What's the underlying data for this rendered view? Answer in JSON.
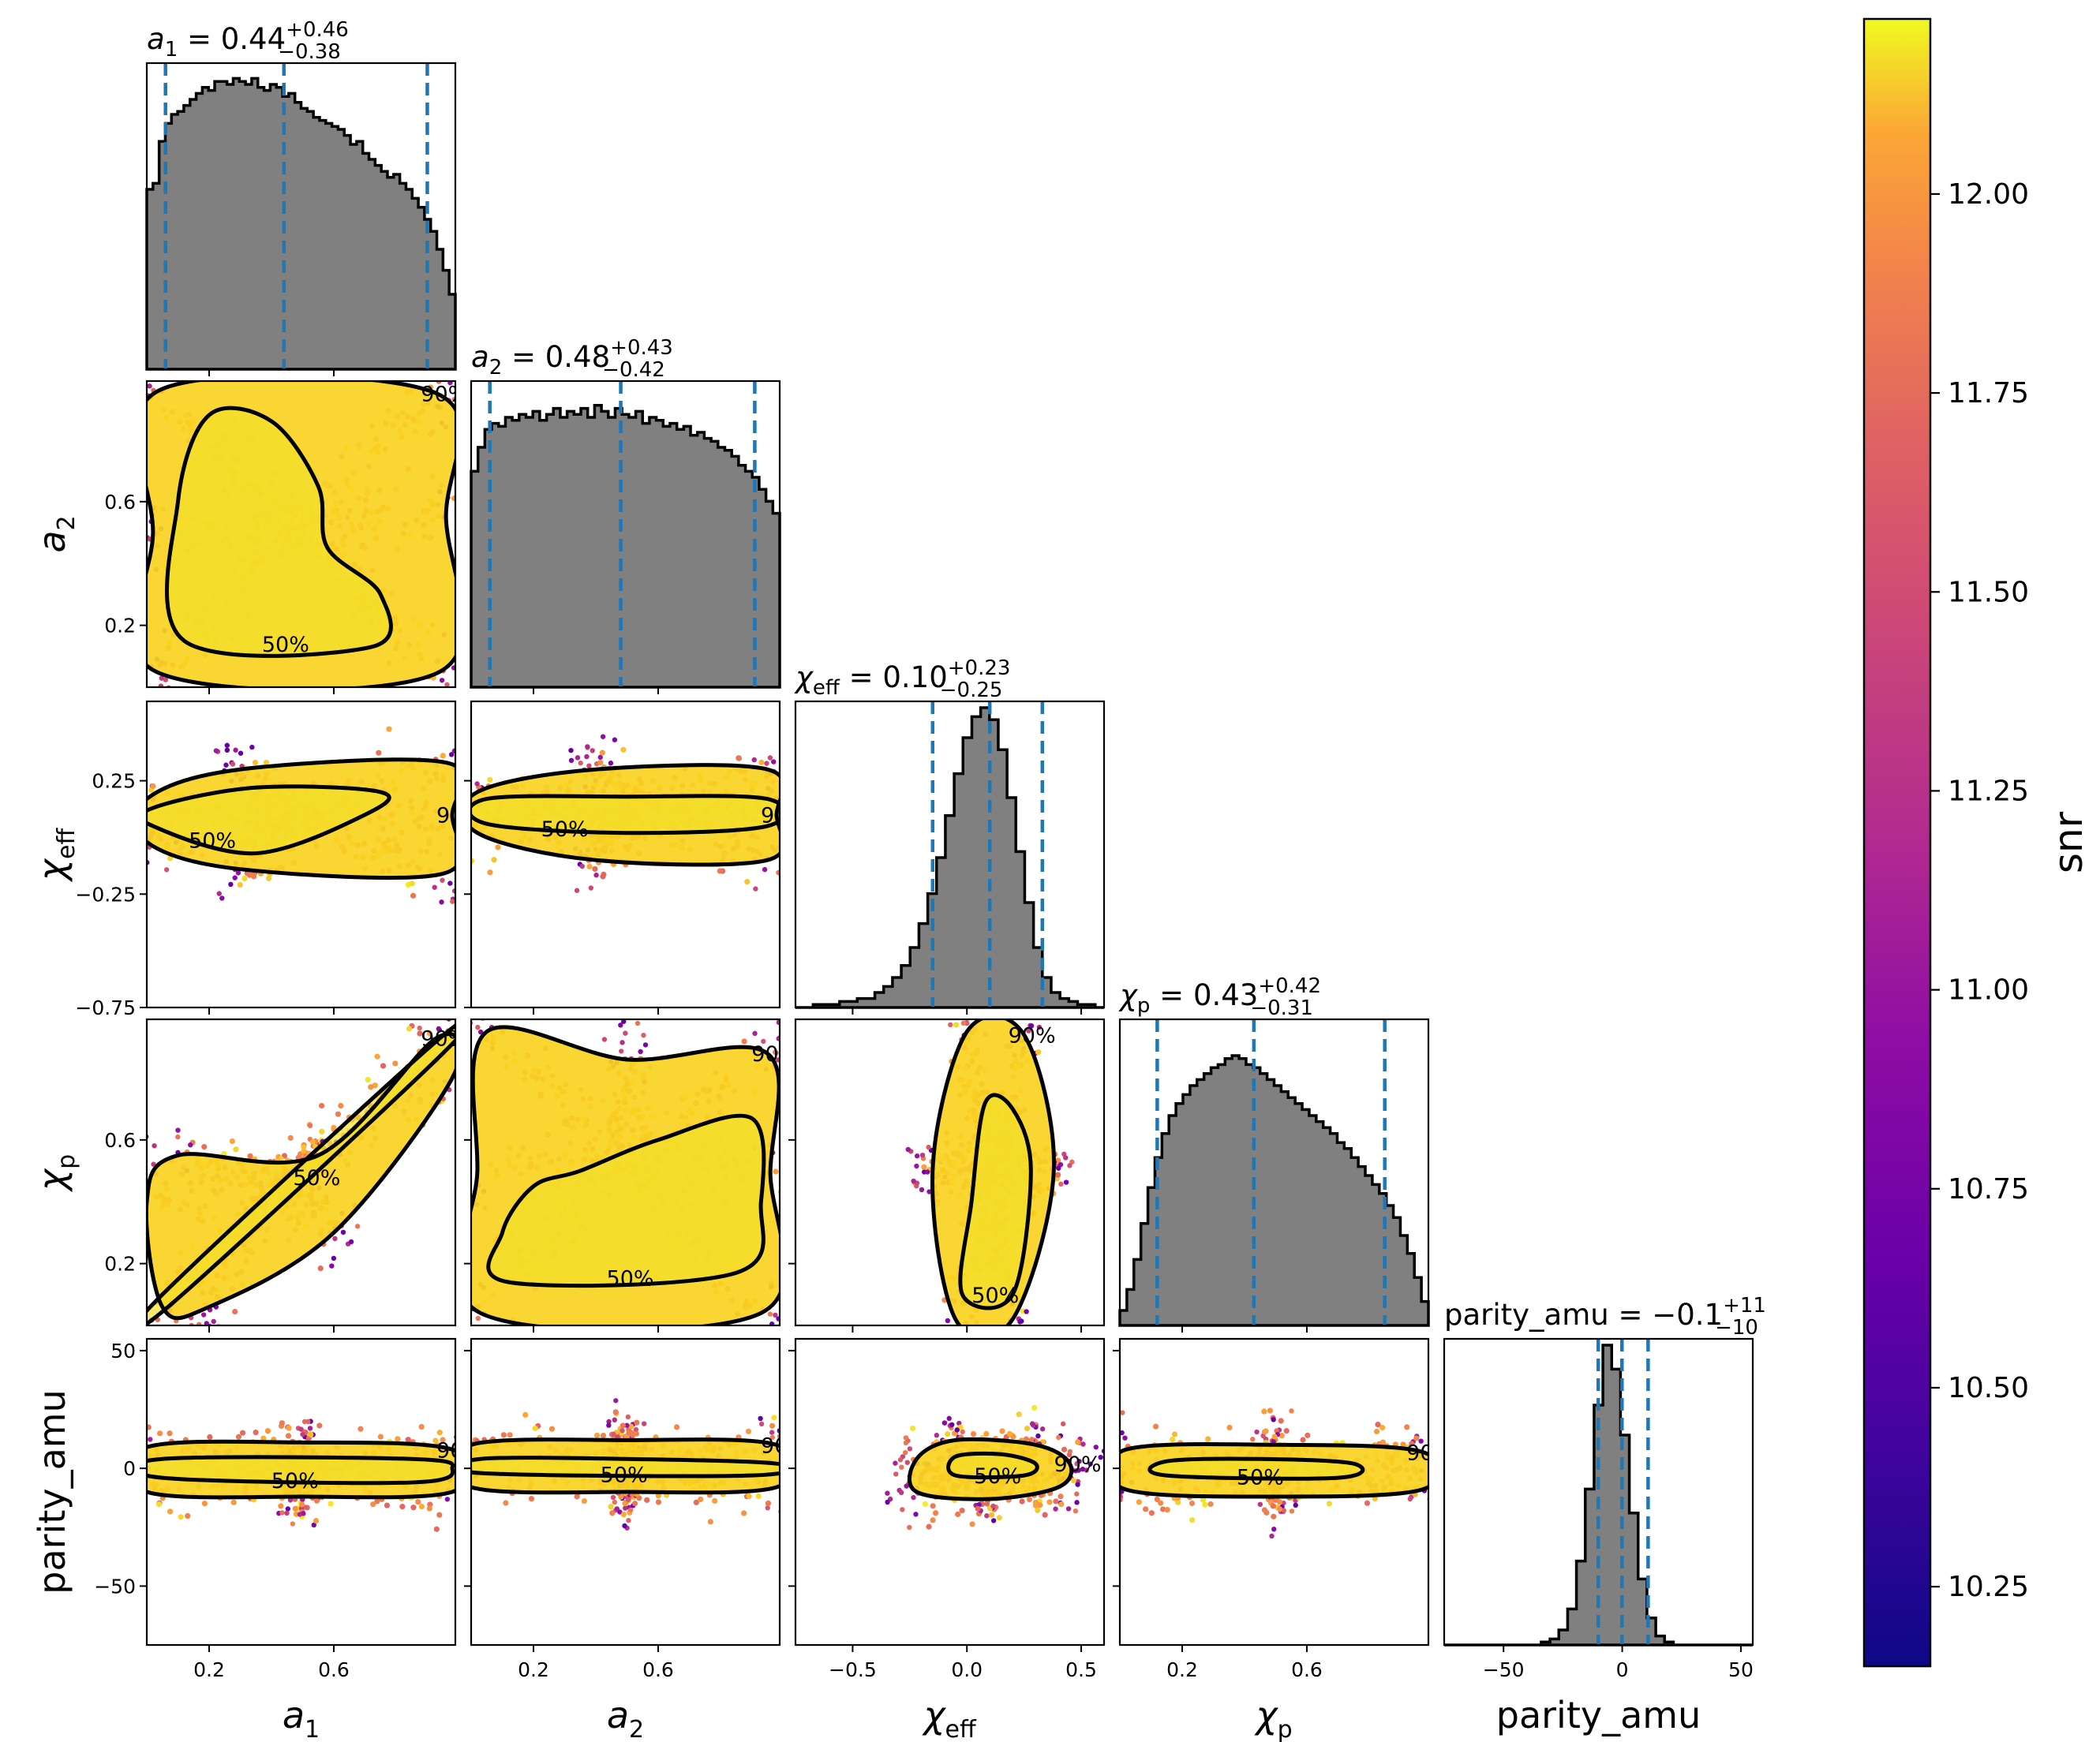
{
  "chart_data": {
    "type": "corner",
    "parameters": [
      {
        "key": "a1",
        "label": "a_1",
        "sub": "1",
        "median": 0.44,
        "plus": 0.46,
        "minus": 0.38,
        "title": "a₁ = 0.44 +0.46 −0.38",
        "range": [
          0.0,
          0.99
        ],
        "ticks": [
          0.2,
          0.6
        ],
        "tick_labels": [
          "0.2",
          "0.6"
        ]
      },
      {
        "key": "a2",
        "label": "a_2",
        "sub": "2",
        "median": 0.48,
        "plus": 0.43,
        "minus": 0.42,
        "title": "a₂ = 0.48 +0.43 −0.42",
        "range": [
          0.0,
          0.99
        ],
        "ticks": [
          0.2,
          0.6
        ],
        "tick_labels": [
          "0.2",
          "0.6"
        ]
      },
      {
        "key": "chi_eff",
        "label": "χ_eff",
        "sub": "eff",
        "median": 0.1,
        "plus": 0.23,
        "minus": 0.25,
        "title": "χ_eff = 0.10 +0.23 −0.25",
        "range": [
          -0.75,
          0.6
        ],
        "ticks": [
          -0.75,
          -0.25,
          0.25
        ],
        "tick_labels": [
          "−0.75",
          "−0.25",
          "0.25"
        ],
        "x_ticks": [
          -0.5,
          0.0,
          0.5
        ],
        "x_tick_labels": [
          "−0.5",
          "0.0",
          "0.5"
        ]
      },
      {
        "key": "chi_p",
        "label": "χ_p",
        "sub": "p",
        "median": 0.43,
        "plus": 0.42,
        "minus": 0.31,
        "title": "χ_p = 0.43 +0.42 −0.31",
        "range": [
          0.0,
          0.99
        ],
        "ticks": [
          0.2,
          0.6
        ],
        "tick_labels": [
          "0.2",
          "0.6"
        ]
      },
      {
        "key": "parity_amu",
        "label": "parity_amu",
        "sub": "",
        "median": -0.1,
        "plus": 11,
        "minus": 10,
        "title": "parity_amu = −0.1 +11 −10",
        "range": [
          -75,
          55
        ],
        "ticks": [
          -50,
          0,
          50
        ],
        "tick_labels": [
          "−50",
          "0",
          "50"
        ]
      }
    ],
    "title_parts": [
      {
        "lhs_italic": "a",
        "lhs_sub": "1",
        "value": "= 0.44",
        "plus": "+0.46",
        "minus": "−0.38"
      },
      {
        "lhs_italic": "a",
        "lhs_sub": "2",
        "value": "= 0.48",
        "plus": "+0.43",
        "minus": "−0.42"
      },
      {
        "lhs_italic": "χ",
        "lhs_sub": "eff",
        "value": "= 0.10",
        "plus": "+0.23",
        "minus": "−0.25"
      },
      {
        "lhs_italic": "χ",
        "lhs_sub": "p",
        "value": "= 0.43",
        "plus": "+0.42",
        "minus": "−0.31"
      },
      {
        "lhs_italic": "",
        "lhs_sub": "",
        "value": "parity_amu = −0.1",
        "plus": "+11",
        "minus": "−10"
      }
    ],
    "axis_labels": {
      "x": [
        {
          "main": "a",
          "sub": "1",
          "italic": true
        },
        {
          "main": "a",
          "sub": "2",
          "italic": true
        },
        {
          "main": "χ",
          "sub": "eff",
          "italic": true
        },
        {
          "main": "χ",
          "sub": "p",
          "italic": true
        },
        {
          "main": "parity_amu",
          "sub": "",
          "italic": false
        }
      ],
      "y": [
        {
          "main": "a",
          "sub": "2",
          "italic": true
        },
        {
          "main": "χ",
          "sub": "eff",
          "italic": true
        },
        {
          "main": "χ",
          "sub": "p",
          "italic": true
        },
        {
          "main": "parity_amu",
          "sub": "",
          "italic": false
        }
      ]
    },
    "histograms": {
      "a1": {
        "bins": [
          0.0,
          0.99
        ],
        "counts": [
          0.6,
          0.62,
          0.76,
          0.82,
          0.85,
          0.86,
          0.88,
          0.9,
          0.92,
          0.94,
          0.93,
          0.96,
          0.96,
          0.95,
          0.97,
          0.96,
          0.95,
          0.97,
          0.94,
          0.93,
          0.95,
          0.94,
          0.91,
          0.92,
          0.89,
          0.87,
          0.86,
          0.84,
          0.83,
          0.82,
          0.81,
          0.8,
          0.78,
          0.75,
          0.76,
          0.72,
          0.7,
          0.68,
          0.66,
          0.64,
          0.65,
          0.62,
          0.6,
          0.57,
          0.54,
          0.5,
          0.46,
          0.4,
          0.33,
          0.25
        ]
      },
      "a2": {
        "bins": [
          0.0,
          0.99
        ],
        "counts": [
          0.72,
          0.8,
          0.86,
          0.88,
          0.87,
          0.9,
          0.89,
          0.91,
          0.9,
          0.92,
          0.89,
          0.91,
          0.93,
          0.9,
          0.92,
          0.91,
          0.93,
          0.9,
          0.94,
          0.92,
          0.9,
          0.93,
          0.91,
          0.9,
          0.92,
          0.88,
          0.9,
          0.89,
          0.87,
          0.88,
          0.86,
          0.87,
          0.84,
          0.85,
          0.83,
          0.82,
          0.8,
          0.79,
          0.77,
          0.74,
          0.72,
          0.7,
          0.66,
          0.62,
          0.58
        ]
      },
      "chi_eff": {
        "bins": [
          -0.75,
          0.6
        ],
        "counts": [
          0.0,
          0.0,
          0.01,
          0.01,
          0.01,
          0.02,
          0.02,
          0.03,
          0.03,
          0.05,
          0.07,
          0.1,
          0.14,
          0.2,
          0.28,
          0.38,
          0.5,
          0.64,
          0.78,
          0.9,
          0.97,
          1.0,
          0.96,
          0.86,
          0.7,
          0.52,
          0.35,
          0.2,
          0.1,
          0.05,
          0.03,
          0.02,
          0.01,
          0.01,
          0.0
        ]
      },
      "chi_p": {
        "bins": [
          0.0,
          0.99
        ],
        "counts": [
          0.05,
          0.12,
          0.22,
          0.34,
          0.46,
          0.56,
          0.64,
          0.7,
          0.74,
          0.77,
          0.8,
          0.82,
          0.84,
          0.86,
          0.87,
          0.89,
          0.9,
          0.89,
          0.87,
          0.86,
          0.84,
          0.82,
          0.8,
          0.78,
          0.76,
          0.74,
          0.72,
          0.7,
          0.68,
          0.66,
          0.64,
          0.61,
          0.59,
          0.56,
          0.53,
          0.5,
          0.47,
          0.44,
          0.4,
          0.36,
          0.3,
          0.24,
          0.16,
          0.08
        ]
      },
      "parity_amu": {
        "bins": [
          -75,
          55
        ],
        "counts": [
          0.0,
          0.0,
          0.0,
          0.0,
          0.0,
          0.0,
          0.0,
          0.0,
          0.0,
          0.0,
          0.0,
          0.01,
          0.02,
          0.05,
          0.12,
          0.28,
          0.52,
          0.8,
          1.0,
          0.92,
          0.7,
          0.44,
          0.22,
          0.09,
          0.03,
          0.01,
          0.0,
          0.0,
          0.0,
          0.0,
          0.0,
          0.0,
          0.0,
          0.0,
          0.0
        ]
      }
    },
    "contour_levels": [
      "50%",
      "90%"
    ],
    "colorbar": {
      "label": "snr",
      "colormap": "plasma",
      "range": [
        10.15,
        12.22
      ],
      "ticks": [
        10.25,
        10.5,
        10.75,
        11.0,
        11.25,
        11.5,
        11.75,
        12.0
      ],
      "tick_labels": [
        "10.25",
        "10.50",
        "10.75",
        "11.00",
        "11.25",
        "11.50",
        "11.75",
        "12.00"
      ]
    },
    "colors": {
      "hist_fill": "#808080",
      "quantile_line": "#1f77b4",
      "contour": "#000000",
      "scatter_core": "#f8d21f"
    }
  }
}
